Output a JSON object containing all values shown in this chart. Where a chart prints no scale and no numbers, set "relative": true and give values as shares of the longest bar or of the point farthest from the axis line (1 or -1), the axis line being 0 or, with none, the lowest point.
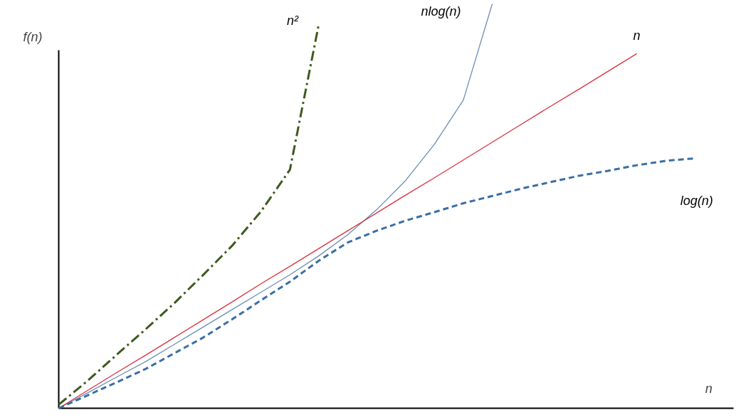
{
  "chart_data": {
    "type": "line",
    "relative": true,
    "xlabel": "n",
    "ylabel": "f(n)",
    "marker": "none",
    "categories": [
      null,
      null,
      null,
      null,
      null,
      null,
      null,
      null,
      null,
      null,
      null,
      null,
      null,
      null,
      null,
      null,
      null,
      null,
      null,
      null,
      null,
      null,
      null
    ],
    "series": [
      {
        "name": "n²",
        "color": "#3d5a1e",
        "line_style": "dashdot",
        "values": [
          0.009,
          0.068,
          0.132,
          0.195,
          0.26,
          0.33,
          0.402,
          0.487,
          0.59,
          0.95,
          null,
          null,
          null,
          null,
          null,
          null,
          null,
          null,
          null,
          null,
          null,
          null,
          null
        ]
      },
      {
        "name": "nlog(n)",
        "color": "#6b8fb5",
        "line_style": "solid",
        "values": [
          0,
          0.038,
          0.077,
          0.115,
          0.158,
          0.201,
          0.244,
          0.287,
          0.33,
          0.377,
          0.429,
          0.491,
          0.563,
          0.653,
          0.762,
          1.0,
          null,
          null,
          null,
          null,
          null,
          null,
          null
        ]
      },
      {
        "name": "n",
        "color": "#d9333f",
        "line_style": "solid",
        "values": [
          0,
          0.044,
          0.088,
          0.131,
          0.175,
          0.219,
          0.263,
          0.308,
          0.351,
          0.395,
          0.439,
          0.483,
          0.527,
          0.57,
          0.614,
          0.658,
          0.702,
          0.746,
          0.789,
          0.833,
          0.877,
          null,
          null
        ]
      },
      {
        "name": "log(n)",
        "color": "#3a6ea5",
        "line_style": "dashed",
        "values": [
          0,
          0.032,
          0.064,
          0.097,
          0.136,
          0.175,
          0.22,
          0.267,
          0.313,
          0.365,
          0.41,
          0.439,
          0.464,
          0.485,
          0.507,
          0.525,
          0.543,
          0.559,
          0.575,
          0.587,
          0.601,
          0.612,
          0.618
        ]
      }
    ]
  }
}
